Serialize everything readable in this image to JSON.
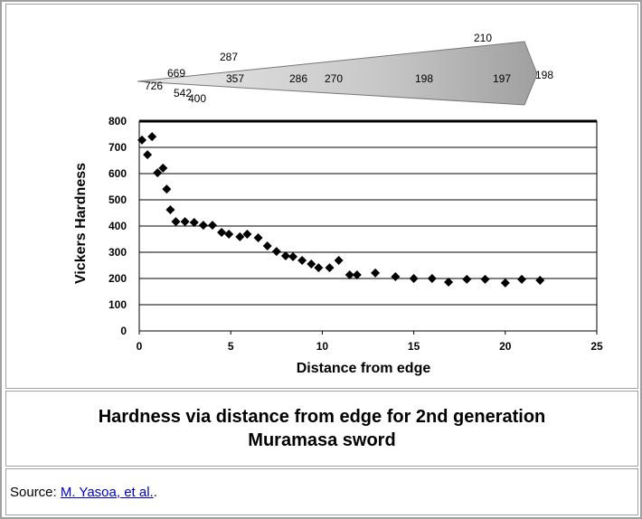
{
  "chart_data": {
    "type": "scatter",
    "x": [
      0.15,
      0.7,
      0.45,
      1.0,
      1.3,
      1.5,
      1.7,
      2.0,
      2.5,
      3.0,
      3.5,
      4.0,
      4.5,
      4.9,
      5.5,
      5.9,
      6.5,
      7.0,
      7.5,
      8.0,
      8.4,
      8.9,
      9.4,
      9.8,
      10.4,
      10.9,
      11.5,
      11.9,
      12.9,
      14.0,
      15.0,
      16.0,
      16.9,
      17.9,
      18.9,
      20.0,
      20.9,
      21.9
    ],
    "values": [
      728,
      741,
      672,
      603,
      621,
      541,
      462,
      417,
      417,
      414,
      403,
      403,
      376,
      369,
      359,
      369,
      355,
      324,
      303,
      286,
      283,
      269,
      255,
      241,
      241,
      269,
      214,
      214,
      221,
      207,
      200,
      200,
      186,
      197,
      197,
      183,
      197,
      193
    ],
    "color": "#000000",
    "xlabel": "Distance from edge",
    "ylabel": "Vickers Hardness",
    "xlim": [
      0,
      25
    ],
    "ylim": [
      0,
      800
    ],
    "xticks": [
      0,
      5,
      10,
      15,
      20,
      25
    ],
    "yticks": [
      0,
      100,
      200,
      300,
      400,
      500,
      600,
      700,
      800
    ],
    "grid": true,
    "annotations": [
      "726",
      "669",
      "542",
      "400",
      "287",
      "357",
      "286",
      "270",
      "198",
      "197",
      "210",
      "198"
    ]
  },
  "caption": "Hardness via distance from edge for 2nd generation Muramasa sword",
  "source": {
    "label": "Source:",
    "link": "M. Yasoa, et al.",
    "end": "."
  }
}
